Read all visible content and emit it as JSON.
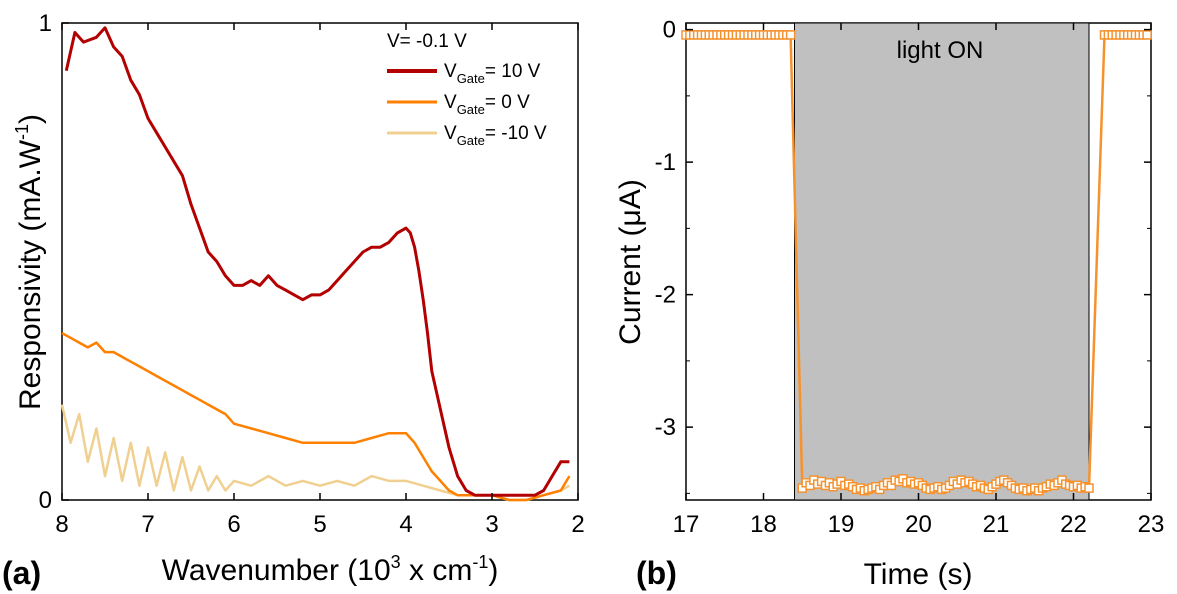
{
  "chart_data": [
    {
      "panel": "(a)",
      "type": "line",
      "xlabel": "Wavenumber (10",
      "xlabel_sup": "3",
      "xlabel_tail": " x cm",
      "xlabel_sup2": "-1",
      "xlabel_end": ")",
      "ylabel": "Responsivity (mA.W",
      "ylabel_sup": "-1",
      "ylabel_end": ")",
      "xlim": [
        8,
        2
      ],
      "ylim": [
        0,
        1
      ],
      "x_ticks": [
        "8",
        "7",
        "6",
        "5",
        "4",
        "3",
        "2"
      ],
      "y_ticks": [
        "0",
        "1"
      ],
      "legend_title": "V= -0.1 V",
      "legend_position": "top-right",
      "series": [
        {
          "name_main": "V",
          "name_sub": "Gate",
          "name_tail": "= 10 V",
          "color": "#b30000",
          "x": [
            7.95,
            7.85,
            7.75,
            7.6,
            7.5,
            7.4,
            7.3,
            7.2,
            7.1,
            7.0,
            6.9,
            6.8,
            6.7,
            6.6,
            6.5,
            6.4,
            6.3,
            6.2,
            6.1,
            6.0,
            5.9,
            5.8,
            5.7,
            5.6,
            5.5,
            5.4,
            5.3,
            5.2,
            5.1,
            5.0,
            4.9,
            4.8,
            4.7,
            4.6,
            4.5,
            4.4,
            4.3,
            4.2,
            4.1,
            4.0,
            3.95,
            3.9,
            3.85,
            3.8,
            3.75,
            3.7,
            3.6,
            3.5,
            3.4,
            3.3,
            3.2,
            3.1,
            3.0,
            2.9,
            2.8,
            2.7,
            2.6,
            2.5,
            2.4,
            2.3,
            2.2,
            2.1
          ],
          "y": [
            0.9,
            0.98,
            0.96,
            0.97,
            0.99,
            0.95,
            0.93,
            0.88,
            0.85,
            0.8,
            0.77,
            0.74,
            0.71,
            0.68,
            0.62,
            0.57,
            0.52,
            0.5,
            0.47,
            0.45,
            0.45,
            0.46,
            0.45,
            0.47,
            0.45,
            0.44,
            0.43,
            0.42,
            0.43,
            0.43,
            0.44,
            0.46,
            0.48,
            0.5,
            0.52,
            0.53,
            0.53,
            0.54,
            0.56,
            0.57,
            0.56,
            0.53,
            0.48,
            0.42,
            0.35,
            0.27,
            0.19,
            0.11,
            0.05,
            0.02,
            0.01,
            0.01,
            0.01,
            0.01,
            0.01,
            0.01,
            0.01,
            0.01,
            0.02,
            0.05,
            0.08,
            0.08
          ]
        },
        {
          "name_main": "V",
          "name_sub": "Gate",
          "name_tail": "= 0 V",
          "color": "#ff8000",
          "x": [
            8.0,
            7.9,
            7.8,
            7.7,
            7.6,
            7.5,
            7.4,
            7.3,
            7.2,
            7.1,
            7.0,
            6.9,
            6.8,
            6.7,
            6.6,
            6.5,
            6.4,
            6.3,
            6.2,
            6.1,
            6.0,
            5.8,
            5.6,
            5.4,
            5.2,
            5.0,
            4.8,
            4.6,
            4.4,
            4.2,
            4.0,
            3.9,
            3.8,
            3.7,
            3.6,
            3.5,
            3.4,
            3.2,
            3.0,
            2.8,
            2.6,
            2.4,
            2.2,
            2.1
          ],
          "y": [
            0.35,
            0.34,
            0.33,
            0.32,
            0.33,
            0.31,
            0.31,
            0.3,
            0.29,
            0.28,
            0.27,
            0.26,
            0.25,
            0.24,
            0.23,
            0.22,
            0.21,
            0.2,
            0.19,
            0.18,
            0.16,
            0.15,
            0.14,
            0.13,
            0.12,
            0.12,
            0.12,
            0.12,
            0.13,
            0.14,
            0.14,
            0.12,
            0.09,
            0.06,
            0.04,
            0.02,
            0.01,
            0.01,
            0.01,
            0.0,
            0.0,
            0.01,
            0.02,
            0.05
          ]
        },
        {
          "name_main": "V",
          "name_sub": "Gate",
          "name_tail": "= -10 V",
          "color": "#f0d090",
          "x": [
            8.0,
            7.9,
            7.8,
            7.7,
            7.6,
            7.5,
            7.4,
            7.3,
            7.2,
            7.1,
            7.0,
            6.9,
            6.8,
            6.7,
            6.6,
            6.5,
            6.4,
            6.3,
            6.2,
            6.1,
            6.0,
            5.8,
            5.6,
            5.4,
            5.2,
            5.0,
            4.8,
            4.6,
            4.4,
            4.2,
            4.0,
            3.8,
            3.6,
            3.4,
            3.2,
            3.0,
            2.8,
            2.6,
            2.4,
            2.2,
            2.1
          ],
          "y": [
            0.2,
            0.12,
            0.18,
            0.08,
            0.15,
            0.05,
            0.13,
            0.04,
            0.12,
            0.03,
            0.11,
            0.03,
            0.1,
            0.02,
            0.09,
            0.02,
            0.07,
            0.02,
            0.05,
            0.02,
            0.04,
            0.03,
            0.05,
            0.03,
            0.04,
            0.03,
            0.04,
            0.03,
            0.05,
            0.04,
            0.04,
            0.03,
            0.02,
            0.01,
            0.01,
            0.01,
            0.0,
            0.0,
            0.01,
            0.02,
            0.03
          ]
        }
      ]
    },
    {
      "panel": "(b)",
      "type": "line",
      "xlabel": "Time (s)",
      "ylabel": "Current (μA)",
      "xlim": [
        17,
        23
      ],
      "ylim": [
        -3.55,
        0.05
      ],
      "x_ticks": [
        "17",
        "18",
        "19",
        "20",
        "21",
        "22",
        "23"
      ],
      "y_ticks": [
        "0",
        "-1",
        "-2",
        "-3"
      ],
      "annotation": "light ON",
      "light_on_interval": [
        18.4,
        22.2
      ],
      "shade_color": "#c0c0c0",
      "series": [
        {
          "name": "",
          "color": "#f5922e",
          "marker": "open-square",
          "x": [
            17.0,
            17.05,
            17.1,
            17.15,
            17.2,
            17.25,
            17.3,
            17.35,
            17.4,
            17.45,
            17.5,
            17.55,
            17.6,
            17.65,
            17.7,
            17.75,
            17.8,
            17.85,
            17.9,
            17.95,
            18.0,
            18.05,
            18.1,
            18.15,
            18.2,
            18.25,
            18.3,
            18.35,
            18.5,
            18.55,
            18.6,
            18.65,
            18.7,
            18.75,
            18.8,
            18.85,
            18.9,
            18.95,
            19.0,
            19.05,
            19.1,
            19.15,
            19.2,
            19.25,
            19.3,
            19.35,
            19.4,
            19.45,
            19.5,
            19.55,
            19.6,
            19.65,
            19.7,
            19.75,
            19.8,
            19.85,
            19.9,
            19.95,
            20.0,
            20.05,
            20.1,
            20.15,
            20.2,
            20.25,
            20.3,
            20.35,
            20.4,
            20.45,
            20.5,
            20.55,
            20.6,
            20.65,
            20.7,
            20.75,
            20.8,
            20.85,
            20.9,
            20.95,
            21.0,
            21.05,
            21.1,
            21.15,
            21.2,
            21.25,
            21.3,
            21.35,
            21.4,
            21.45,
            21.5,
            21.55,
            21.6,
            21.65,
            21.7,
            21.75,
            21.8,
            21.85,
            21.9,
            21.95,
            22.0,
            22.05,
            22.1,
            22.15,
            22.2,
            22.4,
            22.45,
            22.5,
            22.55,
            22.6,
            22.65,
            22.7,
            22.75,
            22.8,
            22.85,
            22.9,
            22.95
          ],
          "y": [
            -0.04,
            -0.04,
            -0.04,
            -0.04,
            -0.04,
            -0.04,
            -0.04,
            -0.04,
            -0.04,
            -0.04,
            -0.04,
            -0.04,
            -0.04,
            -0.04,
            -0.04,
            -0.04,
            -0.04,
            -0.04,
            -0.04,
            -0.04,
            -0.04,
            -0.04,
            -0.04,
            -0.04,
            -0.04,
            -0.04,
            -0.04,
            -0.04,
            -3.46,
            -3.42,
            -3.44,
            -3.4,
            -3.43,
            -3.41,
            -3.44,
            -3.42,
            -3.45,
            -3.43,
            -3.41,
            -3.44,
            -3.43,
            -3.45,
            -3.47,
            -3.46,
            -3.48,
            -3.47,
            -3.46,
            -3.45,
            -3.47,
            -3.44,
            -3.42,
            -3.44,
            -3.4,
            -3.41,
            -3.39,
            -3.42,
            -3.41,
            -3.43,
            -3.42,
            -3.44,
            -3.46,
            -3.47,
            -3.46,
            -3.45,
            -3.47,
            -3.46,
            -3.44,
            -3.41,
            -3.43,
            -3.4,
            -3.42,
            -3.41,
            -3.43,
            -3.45,
            -3.44,
            -3.46,
            -3.47,
            -3.45,
            -3.43,
            -3.41,
            -3.4,
            -3.42,
            -3.44,
            -3.46,
            -3.47,
            -3.46,
            -3.48,
            -3.47,
            -3.46,
            -3.48,
            -3.46,
            -3.45,
            -3.43,
            -3.44,
            -3.42,
            -3.4,
            -3.43,
            -3.44,
            -3.45,
            -3.44,
            -3.46,
            -3.45,
            -3.46,
            -0.04,
            -0.04,
            -0.04,
            -0.04,
            -0.04,
            -0.04,
            -0.04,
            -0.04,
            -0.04,
            -0.04,
            -0.04,
            -0.04
          ]
        }
      ]
    }
  ]
}
